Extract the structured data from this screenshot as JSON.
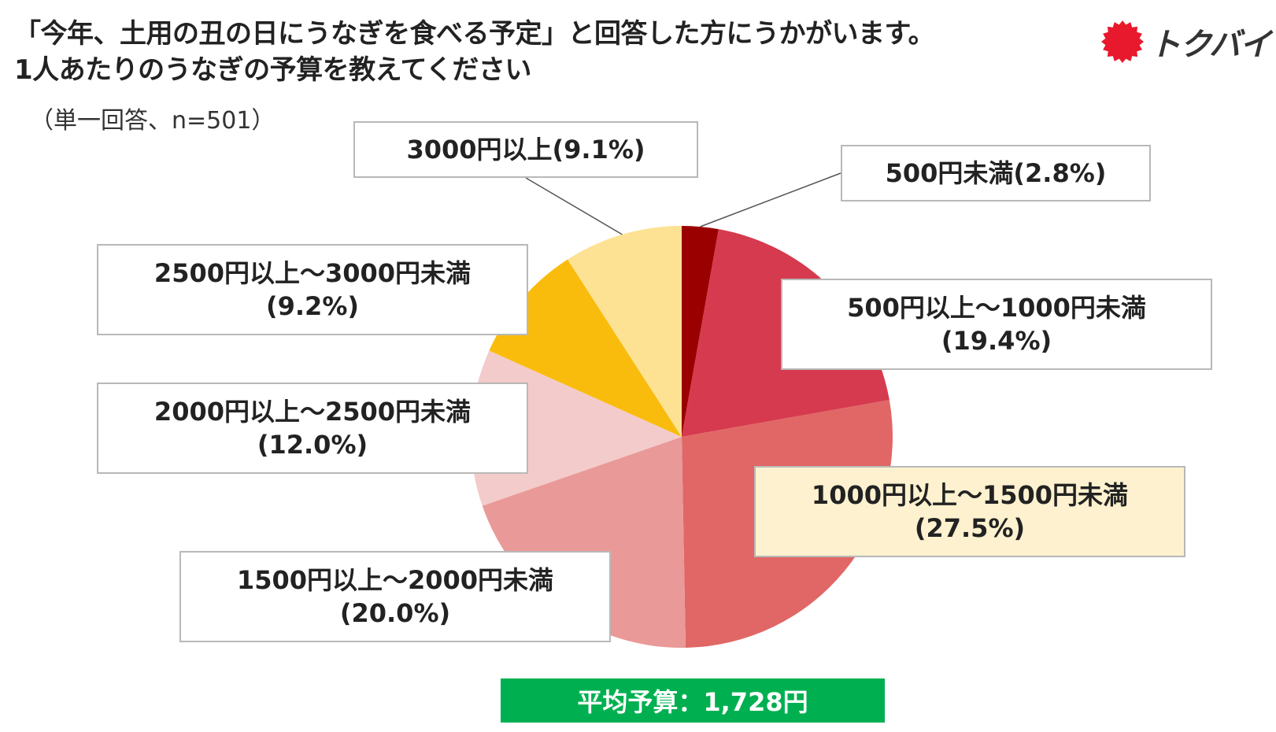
{
  "title_line1": "「今年、土用の丑の日にうなぎを食べる予定」と回答した方にうかがいます。",
  "title_line2": "1人あたりのうなぎの予算を教えてください",
  "subtitle": "（単一回答、n=501）",
  "logo": {
    "text": "トクバイ",
    "icon": "red-sun-badge-icon",
    "color": "#e8192c"
  },
  "average": "平均予算：1,728円",
  "chart_data": {
    "type": "pie",
    "unit": "%",
    "start_angle_deg": 0,
    "direction": "clockwise",
    "categories": [
      "500円未満",
      "500円以上～1000円未満",
      "1000円以上～1500円未満",
      "1500円以上～2000円未満",
      "2000円以上～2500円未満",
      "2500円以上～3000円未満",
      "3000円以上"
    ],
    "values": [
      2.8,
      19.4,
      27.5,
      20.0,
      12.0,
      9.2,
      9.1
    ],
    "colors": [
      "#9b0000",
      "#d63a4e",
      "#e06765",
      "#e99a98",
      "#f3cbca",
      "#f9bc0c",
      "#fde293"
    ],
    "labels": [
      {
        "line1": "500円未満(2.8%)",
        "line2": ""
      },
      {
        "line1": "500円以上～1000円未満",
        "line2": "(19.4%)"
      },
      {
        "line1": "1000円以上～1500円未満",
        "line2": "(27.5%)"
      },
      {
        "line1": "1500円以上～2000円未満",
        "line2": "(20.0%)"
      },
      {
        "line1": "2000円以上～2500円未満",
        "line2": "(12.0%)"
      },
      {
        "line1": "2500円以上～3000円未満",
        "line2": "(9.2%)"
      },
      {
        "line1": "3000円以上(9.1%)",
        "line2": ""
      }
    ],
    "highlight_index": 2
  }
}
